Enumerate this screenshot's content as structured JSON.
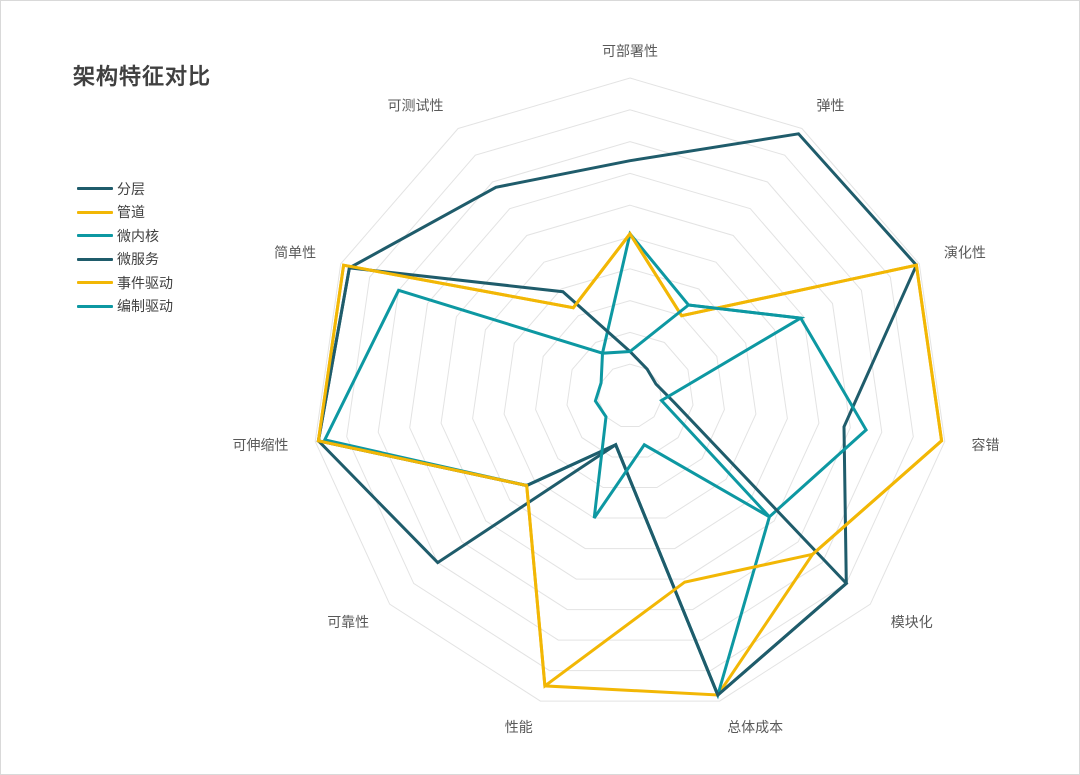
{
  "chart_data": {
    "type": "radar",
    "title": "架构特征对比",
    "axes": [
      "可部署性",
      "弹性",
      "演化性",
      "容错",
      "模块化",
      "总体成本",
      "性能",
      "可靠性",
      "可伸缩性",
      "简单性",
      "可测试性"
    ],
    "rmax": 1,
    "grid_levels": 10,
    "legend_position": "left",
    "series": [
      {
        "name": "分层",
        "color": "#1f5c6b",
        "values": [
          0.74,
          0.98,
          0.99,
          0.68,
          0.9,
          0.98,
          0.16,
          0.8,
          0.99,
          0.97,
          0.78
        ]
      },
      {
        "name": "管道",
        "color": "#f2b705",
        "values": [
          0.51,
          0.3,
          0.99,
          0.99,
          0.76,
          0.98,
          0.95,
          0.43,
          0.99,
          0.99,
          0.33
        ]
      },
      {
        "name": "微内核",
        "color": "#0d98a2",
        "values": [
          0.51,
          0.34,
          0.59,
          0.75,
          0.58,
          0.98,
          0.16,
          0.43,
          0.97,
          0.8,
          0.16
        ]
      },
      {
        "name": "微服务",
        "color": "#1f5c6b",
        "values": [
          0.14,
          0.1,
          0.09,
          0.14,
          0.9,
          0.98,
          0.16,
          0.43,
          0.99,
          0.97,
          0.39
        ]
      },
      {
        "name": "事件驱动",
        "color": "#f2b705",
        "values": [
          0.51,
          0.3,
          0.99,
          0.99,
          0.76,
          0.61,
          0.95,
          0.43,
          0.99,
          0.99,
          0.33
        ]
      },
      {
        "name": "编制驱动",
        "color": "#0d98a2",
        "values": [
          0.14,
          0.34,
          0.59,
          0.1,
          0.58,
          0.16,
          0.4,
          0.1,
          0.11,
          0.1,
          0.16
        ]
      }
    ]
  }
}
